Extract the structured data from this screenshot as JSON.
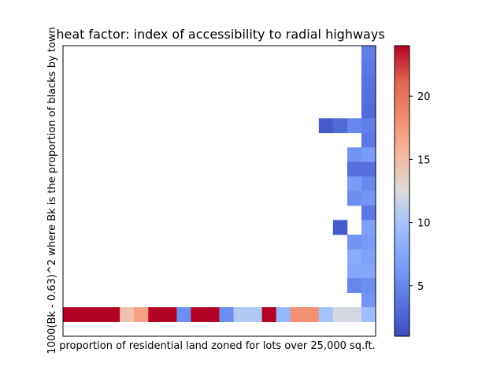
{
  "chart_data": {
    "type": "heatmap",
    "title": "heat factor: index of accessibility to radial highways",
    "xlabel": "proportion of residential land zoned for lots over 25,000 sq.ft.",
    "ylabel": "1000(Bk - 0.63)^2 where Bk is the proportion of blacks by town",
    "colormap": "coolwarm",
    "colorbar": {
      "vmin": 1,
      "vmax": 24,
      "ticks": [
        5,
        10,
        15,
        20
      ]
    },
    "n_cols": 22,
    "n_rows": 20,
    "cells": [
      [
        21,
        0,
        4.5
      ],
      [
        21,
        1,
        4.0
      ],
      [
        21,
        2,
        3.7
      ],
      [
        21,
        3,
        3.5
      ],
      [
        21,
        4,
        3.0
      ],
      [
        18,
        5,
        2.0
      ],
      [
        19,
        5,
        3.0
      ],
      [
        20,
        5,
        5.0
      ],
      [
        21,
        5,
        4.5
      ],
      [
        21,
        6,
        4.0
      ],
      [
        20,
        7,
        6.0
      ],
      [
        21,
        7,
        6.5
      ],
      [
        20,
        8,
        3.5
      ],
      [
        21,
        8,
        3.5
      ],
      [
        20,
        9,
        6.5
      ],
      [
        21,
        9,
        5.0
      ],
      [
        20,
        10,
        5.5
      ],
      [
        21,
        10,
        6.0
      ],
      [
        21,
        11,
        4.0
      ],
      [
        19,
        12,
        2.0
      ],
      [
        21,
        12,
        7.0
      ],
      [
        20,
        13,
        6.0
      ],
      [
        21,
        13,
        6.5
      ],
      [
        20,
        14,
        8.0
      ],
      [
        21,
        14,
        7.0
      ],
      [
        20,
        15,
        7.5
      ],
      [
        21,
        15,
        7.5
      ],
      [
        20,
        16,
        5.0
      ],
      [
        21,
        16,
        5.5
      ],
      [
        21,
        17,
        6.0
      ],
      [
        0,
        18,
        24
      ],
      [
        1,
        18,
        24
      ],
      [
        2,
        18,
        24
      ],
      [
        3,
        18,
        24
      ],
      [
        4,
        18,
        14.5
      ],
      [
        5,
        18,
        17
      ],
      [
        6,
        18,
        24
      ],
      [
        7,
        18,
        24
      ],
      [
        8,
        18,
        5.5
      ],
      [
        9,
        18,
        24
      ],
      [
        10,
        18,
        24
      ],
      [
        11,
        18,
        5.5
      ],
      [
        12,
        18,
        10.5
      ],
      [
        13,
        18,
        10.5
      ],
      [
        14,
        18,
        24
      ],
      [
        15,
        18,
        9.0
      ],
      [
        16,
        18,
        18.0
      ],
      [
        17,
        18,
        18.0
      ],
      [
        18,
        18,
        10.0
      ],
      [
        19,
        18,
        12.0
      ],
      [
        20,
        18,
        12.0
      ],
      [
        21,
        18,
        9.5
      ]
    ]
  }
}
